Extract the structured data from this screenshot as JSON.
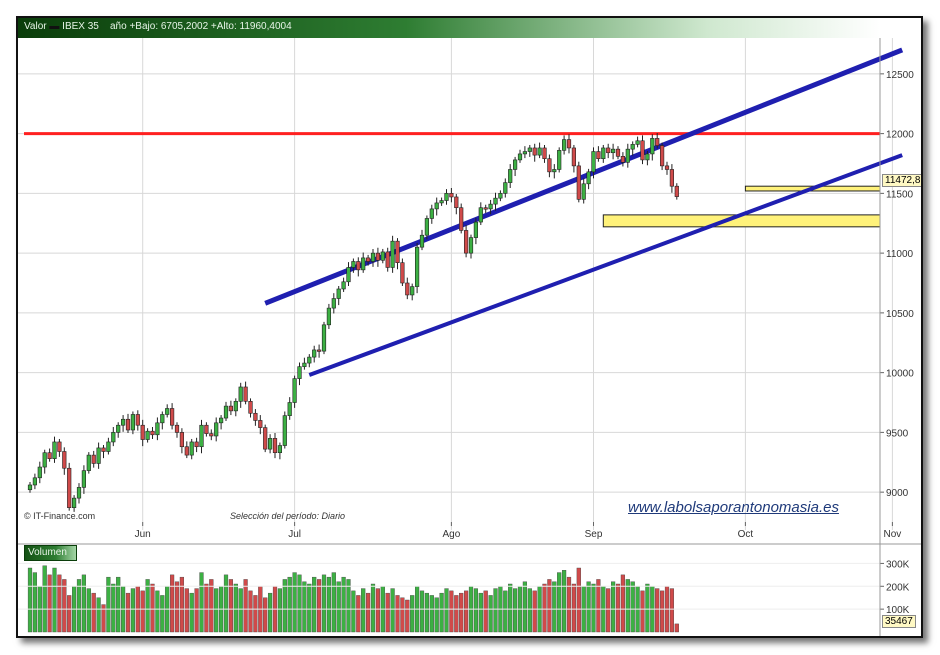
{
  "header": {
    "label": "Valor",
    "symbol": "IBEX 35",
    "range_text": "año +Bajo: 6705,2002 +Alto: 11960,4004"
  },
  "footer": {
    "source": "© IT-Finance.com",
    "period_text": "Selección del período: Diario",
    "watermark": "www.labolsaporantonomasia.es"
  },
  "volume_label": "Volumen",
  "last_price_tag": "11472,8",
  "last_volume_tag": "35467",
  "colors": {
    "up": "#3cb043",
    "down": "#d04a4a",
    "channel": "#1f1fb0",
    "resistance": "#ff2020",
    "zone": "#fff27a",
    "grid": "#d8d8d8"
  },
  "chart_data": {
    "type": "candlestick",
    "x_tick_labels": [
      "Jun",
      "Jul",
      "Ago",
      "Sep",
      "Oct",
      "Nov"
    ],
    "y_tick_labels": [
      "9000",
      "9500",
      "10000",
      "10500",
      "11000",
      "11500",
      "12000",
      "12500"
    ],
    "ylim": [
      8700,
      12800
    ],
    "resistance_level": 12000,
    "support_zones": [
      [
        11220,
        11320
      ],
      [
        11520,
        11560
      ]
    ],
    "channel_upper": {
      "start": [
        48,
        10580
      ],
      "end": [
        178,
        12700
      ]
    },
    "channel_lower": {
      "start": [
        57,
        9980
      ],
      "end": [
        178,
        11820
      ]
    },
    "closes": [
      9060,
      9120,
      9210,
      9330,
      9280,
      9420,
      9340,
      9200,
      8870,
      8950,
      9040,
      9180,
      9310,
      9240,
      9370,
      9340,
      9420,
      9500,
      9560,
      9610,
      9520,
      9650,
      9560,
      9440,
      9510,
      9480,
      9580,
      9650,
      9700,
      9560,
      9500,
      9380,
      9310,
      9420,
      9380,
      9560,
      9490,
      9470,
      9580,
      9620,
      9720,
      9680,
      9760,
      9880,
      9760,
      9660,
      9600,
      9540,
      9360,
      9450,
      9330,
      9390,
      9640,
      9750,
      9950,
      10050,
      10080,
      10130,
      10190,
      10180,
      10400,
      10540,
      10620,
      10700,
      10760,
      10880,
      10930,
      10860,
      10960,
      10930,
      11000,
      10940,
      11010,
      10880,
      11100,
      10920,
      10750,
      10650,
      10720,
      11050,
      11150,
      11290,
      11370,
      11420,
      11440,
      11500,
      11470,
      11380,
      11190,
      11000,
      11130,
      11260,
      11380,
      11370,
      11410,
      11460,
      11500,
      11590,
      11700,
      11780,
      11830,
      11850,
      11880,
      11820,
      11880,
      11790,
      11680,
      11700,
      11860,
      11950,
      11880,
      11730,
      11450,
      11580,
      11680,
      11850,
      11790,
      11880,
      11840,
      11870,
      11810,
      11760,
      11870,
      11910,
      11940,
      11780,
      11830,
      11960,
      11900,
      11730,
      11700,
      11560,
      11472.8
    ],
    "volume_ylim": [
      0,
      350000
    ],
    "volume_tick_labels": [
      "100K",
      "200K",
      "300K"
    ],
    "volumes": [
      280000,
      260000,
      200000,
      290000,
      250000,
      280000,
      250000,
      230000,
      160000,
      200000,
      230000,
      250000,
      190000,
      170000,
      150000,
      120000,
      240000,
      210000,
      240000,
      200000,
      170000,
      190000,
      200000,
      180000,
      230000,
      210000,
      180000,
      160000,
      200000,
      250000,
      220000,
      240000,
      190000,
      170000,
      190000,
      260000,
      210000,
      230000,
      190000,
      200000,
      250000,
      230000,
      210000,
      190000,
      230000,
      180000,
      160000,
      200000,
      150000,
      170000,
      200000,
      190000,
      230000,
      240000,
      260000,
      250000,
      220000,
      210000,
      240000,
      230000,
      250000,
      240000,
      260000,
      220000,
      240000,
      230000,
      180000,
      160000,
      190000,
      170000,
      210000,
      190000,
      200000,
      170000,
      190000,
      160000,
      150000,
      140000,
      160000,
      200000,
      180000,
      170000,
      160000,
      150000,
      170000,
      190000,
      180000,
      160000,
      170000,
      180000,
      200000,
      190000,
      170000,
      180000,
      160000,
      190000,
      200000,
      180000,
      210000,
      190000,
      200000,
      220000,
      190000,
      180000,
      200000,
      210000,
      230000,
      220000,
      260000,
      270000,
      240000,
      210000,
      280000,
      200000,
      220000,
      210000,
      230000,
      200000,
      190000,
      220000,
      210000,
      250000,
      230000,
      220000,
      200000,
      180000,
      210000,
      200000,
      190000,
      180000,
      200000,
      190000,
      35467
    ]
  }
}
